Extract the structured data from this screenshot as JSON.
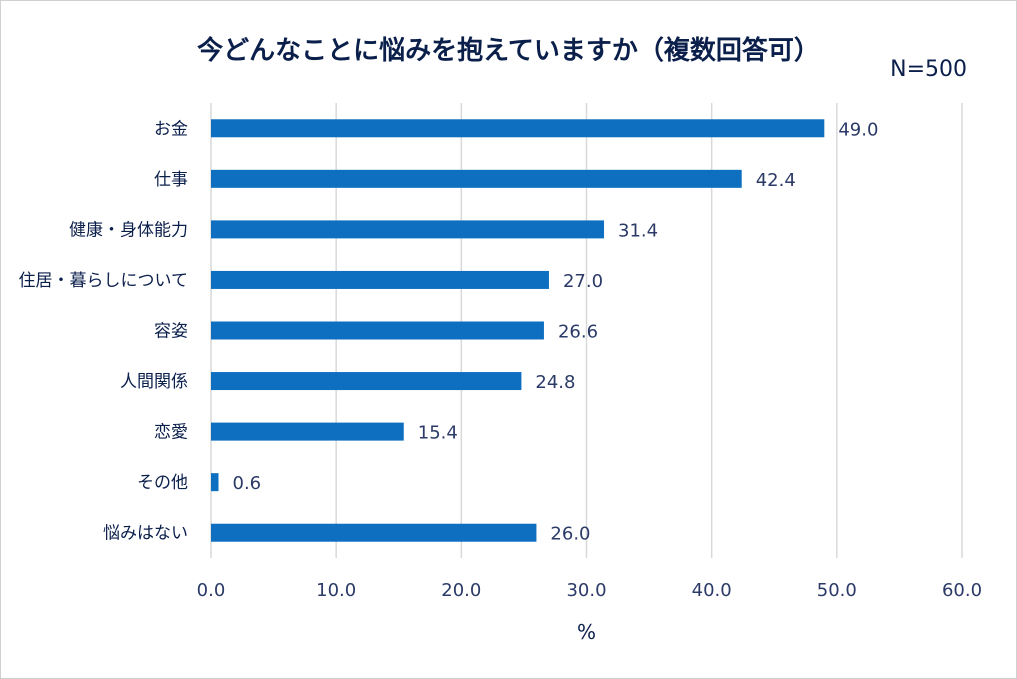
{
  "chart_data": {
    "type": "bar",
    "orientation": "horizontal",
    "title": "今どんなことに悩みを抱えていますか（複数回答可）",
    "note": "N=500",
    "categories": [
      "お金",
      "仕事",
      "健康・身体能力",
      "住居・暮らしについて",
      "容姿",
      "人間関係",
      "恋愛",
      "その他",
      "悩みはない"
    ],
    "values": [
      49.0,
      42.4,
      31.4,
      27.0,
      26.6,
      24.8,
      15.4,
      0.6,
      26.0
    ],
    "value_labels": [
      "49.0",
      "42.4",
      "31.4",
      "27.0",
      "26.6",
      "24.8",
      "15.4",
      "0.6",
      "26.0"
    ],
    "xlabel": "%",
    "ylabel": "",
    "xlim": [
      0,
      60
    ],
    "xticks": [
      "0.0",
      "10.0",
      "20.0",
      "30.0",
      "40.0",
      "50.0",
      "60.0"
    ],
    "grid": "vertical",
    "bar_color": "#0e6fc0"
  }
}
